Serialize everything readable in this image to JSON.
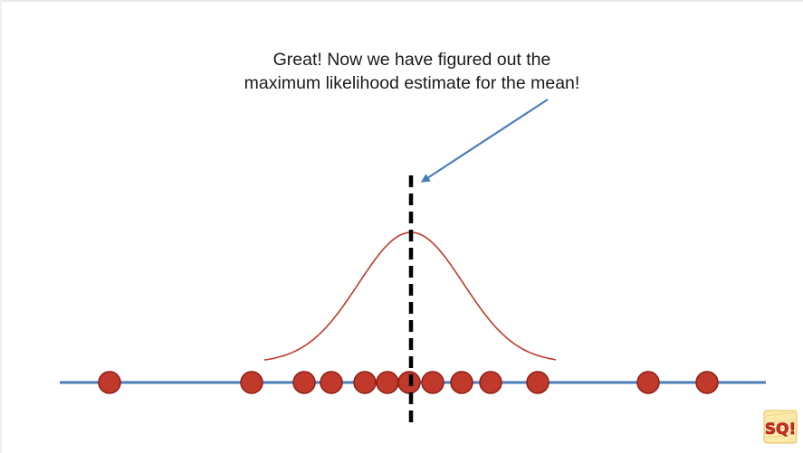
{
  "caption": {
    "line1": "Great! Now we have figured out the",
    "line2": "maximum likelihood estimate for the mean!"
  },
  "colors": {
    "axis_line": "#4a7ebb",
    "data_point_fill": "#c0392b",
    "data_point_stroke": "#8e1f15",
    "curve": "#c0392b",
    "mean_line": "#000000",
    "arrow": "#4a7ebb"
  },
  "icons": {
    "logo": "statquest-so-logo-icon"
  },
  "logo_text": "SQ!"
}
